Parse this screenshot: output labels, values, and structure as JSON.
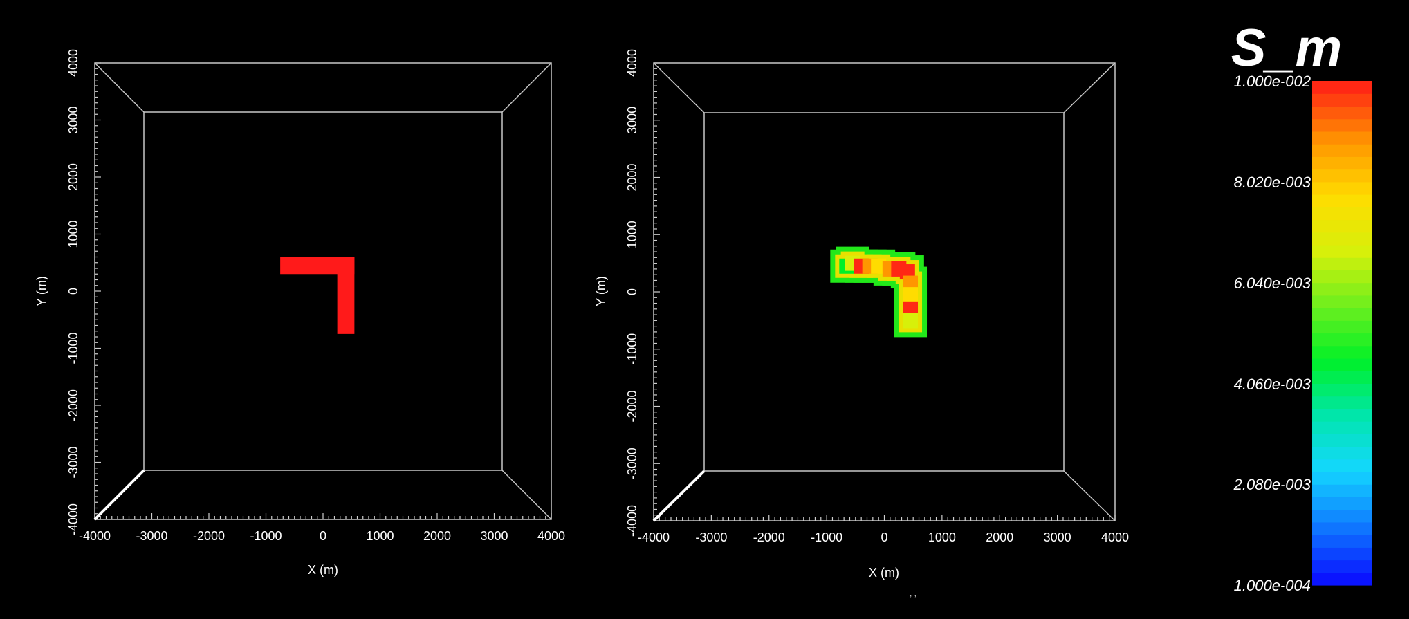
{
  "chart_data": [
    {
      "type": "heatmap",
      "description_kind": "3d-box-plot-top-view",
      "xlabel": "X (m)",
      "ylabel": "Y (m)",
      "xlim": [
        -4000,
        4000
      ],
      "ylim": [
        -4000,
        4000
      ],
      "x_ticks": [
        "-4000",
        "-3000",
        "-2000",
        "-1000",
        "0",
        "1000",
        "2000",
        "3000",
        "4000"
      ],
      "y_ticks": [
        "4000",
        "3000",
        "2000",
        "1000",
        "0",
        "-1000",
        "-2000",
        "-3000",
        "-4000"
      ],
      "field_shape": "L",
      "field_value": 0.01,
      "field_color": "#ff1a1a",
      "regions": [
        {
          "x0": -750,
          "x1": 550,
          "y0": 300,
          "y1": 600
        },
        {
          "x0": 250,
          "x1": 550,
          "y0": -750,
          "y1": 600
        }
      ]
    },
    {
      "type": "heatmap",
      "description_kind": "3d-box-plot-top-view",
      "xlabel": "X (m)",
      "ylabel": "Y (m)",
      "xlim": [
        -4000,
        4000
      ],
      "ylim": [
        -4000,
        4000
      ],
      "x_ticks": [
        "-4000",
        "-3000",
        "-2000",
        "-1000",
        "0",
        "1000",
        "2000",
        "3000",
        "4000"
      ],
      "y_ticks": [
        "4000",
        "3000",
        "2000",
        "1000",
        "0",
        "-1000",
        "-2000",
        "-3000",
        "-4000"
      ],
      "field_shape": "diffused-L",
      "cells_approx": [
        {
          "x": -650,
          "y": 450,
          "v": 0.0045
        },
        {
          "x": -550,
          "y": 500,
          "v": 0.007
        },
        {
          "x": -400,
          "y": 450,
          "v": 0.0095
        },
        {
          "x": -250,
          "y": 450,
          "v": 0.0085
        },
        {
          "x": -100,
          "y": 450,
          "v": 0.008
        },
        {
          "x": 100,
          "y": 400,
          "v": 0.0085
        },
        {
          "x": 250,
          "y": 400,
          "v": 0.0095
        },
        {
          "x": 400,
          "y": 350,
          "v": 0.0092
        },
        {
          "x": 450,
          "y": 150,
          "v": 0.0085
        },
        {
          "x": 450,
          "y": -50,
          "v": 0.008
        },
        {
          "x": 450,
          "y": -300,
          "v": 0.0095
        },
        {
          "x": 450,
          "y": -500,
          "v": 0.007
        }
      ]
    }
  ],
  "colorbar": {
    "title": "S_m",
    "min_label": "1.000e-004",
    "max_label": "1.000e-002",
    "tick_labels": [
      "1.000e-002",
      "8.020e-003",
      "6.040e-003",
      "4.060e-003",
      "2.080e-003",
      "1.000e-004"
    ],
    "stops": [
      "#0a14ff",
      "#0f7dff",
      "#14d7ff",
      "#00e6aa",
      "#00f028",
      "#6eef1e",
      "#d7f00a",
      "#ffdc00",
      "#ff9600",
      "#ff2814"
    ]
  },
  "footer": {
    "mark": ", ,"
  }
}
